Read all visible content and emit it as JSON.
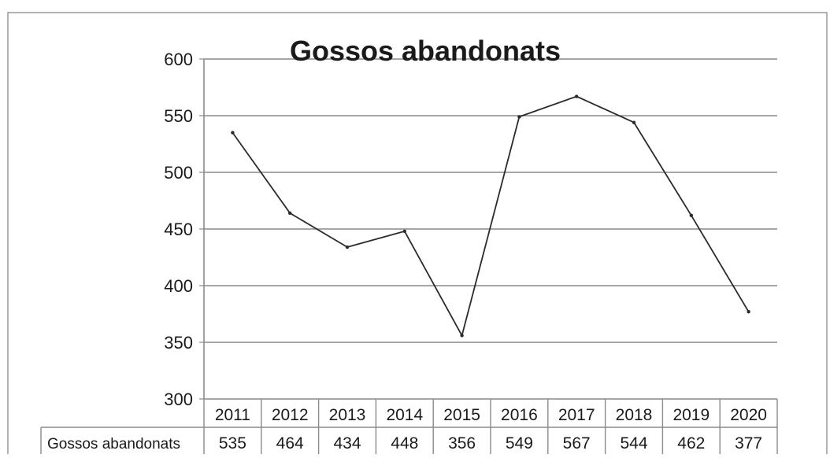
{
  "chart_data": {
    "type": "line",
    "title": "Gossos abandonats",
    "xlabel": "",
    "ylabel": "",
    "ylim": [
      300,
      600
    ],
    "yticks": [
      300,
      350,
      400,
      450,
      500,
      550,
      600
    ],
    "grid": true,
    "legend": "none",
    "categories": [
      "2011",
      "2012",
      "2013",
      "2014",
      "2015",
      "2016",
      "2017",
      "2018",
      "2019",
      "2020"
    ],
    "series": [
      {
        "name": "Gossos abandonats",
        "values": [
          535,
          464,
          434,
          448,
          356,
          549,
          567,
          544,
          462,
          377
        ]
      }
    ],
    "data_table": {
      "row_label": "Gossos abandonats",
      "values": [
        "535",
        "464",
        "434",
        "448",
        "356",
        "549",
        "567",
        "544",
        "462",
        "377"
      ]
    }
  },
  "colors": {
    "line": "#2b2b2b",
    "grid": "#8a8a8a",
    "axis": "#8a8a8a",
    "text": "#1a1a1a",
    "frame": "#9a9a9a"
  }
}
